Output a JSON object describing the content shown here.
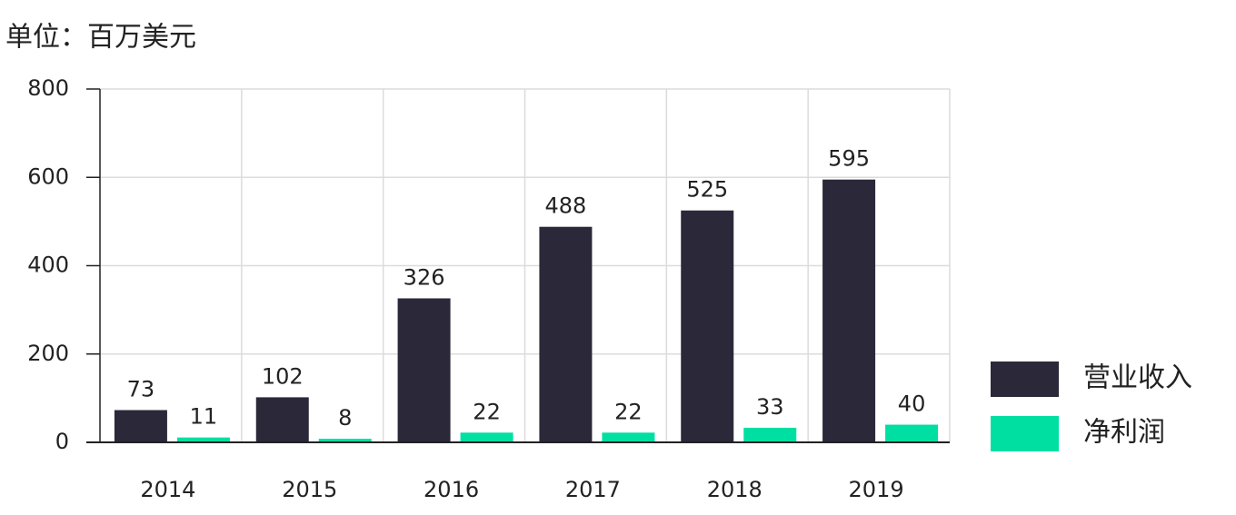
{
  "chart_data": {
    "type": "bar",
    "title": "单位：百万美元",
    "categories": [
      "2014",
      "2015",
      "2016",
      "2017",
      "2018",
      "2019"
    ],
    "series": [
      {
        "name": "营业收入",
        "color": "#2b2839",
        "values": [
          73,
          102,
          326,
          488,
          525,
          595
        ]
      },
      {
        "name": "净利润",
        "color": "#00dfa2",
        "values": [
          11,
          8,
          22,
          22,
          33,
          40
        ]
      }
    ],
    "ylim": [
      0,
      800
    ],
    "yticks": [
      0,
      200,
      400,
      600,
      800
    ],
    "grid": true,
    "legend": "right"
  }
}
